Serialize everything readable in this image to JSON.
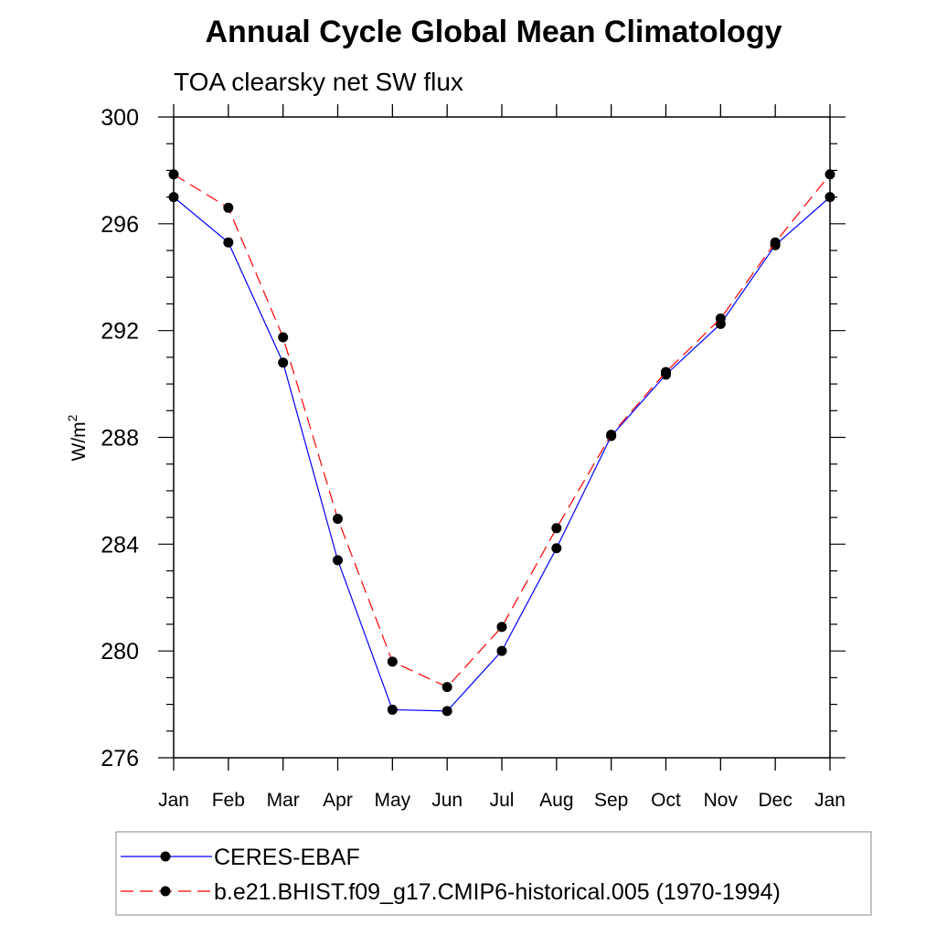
{
  "chart_data": {
    "type": "line",
    "title": "Annual Cycle Global Mean Climatology",
    "subtitle": "TOA clearsky net SW flux",
    "ylabel": "W/m",
    "ylabel_superscript": "2",
    "xlabel": "",
    "categories": [
      "Jan",
      "Feb",
      "Mar",
      "Apr",
      "May",
      "Jun",
      "Jul",
      "Aug",
      "Sep",
      "Oct",
      "Nov",
      "Dec",
      "Jan"
    ],
    "ylim": [
      276,
      300
    ],
    "yticks": [
      276,
      280,
      284,
      288,
      292,
      296,
      300
    ],
    "grid": false,
    "legend_position": "bottom",
    "series": [
      {
        "name": "CERES-EBAF",
        "color": "#0000ff",
        "line_style": "solid",
        "marker": "filled-circle",
        "values": [
          297.0,
          295.3,
          290.8,
          283.4,
          277.8,
          277.75,
          280.0,
          283.85,
          288.05,
          290.35,
          292.25,
          295.2,
          297.0
        ]
      },
      {
        "name": "b.e21.BHIST.f09_g17.CMIP6-historical.005 (1970-1994)",
        "color": "#ff0000",
        "line_style": "dashed",
        "marker": "filled-circle",
        "values": [
          297.85,
          296.6,
          291.75,
          284.95,
          279.6,
          278.65,
          280.9,
          284.6,
          288.1,
          290.45,
          292.45,
          295.3,
          297.85
        ]
      }
    ]
  }
}
